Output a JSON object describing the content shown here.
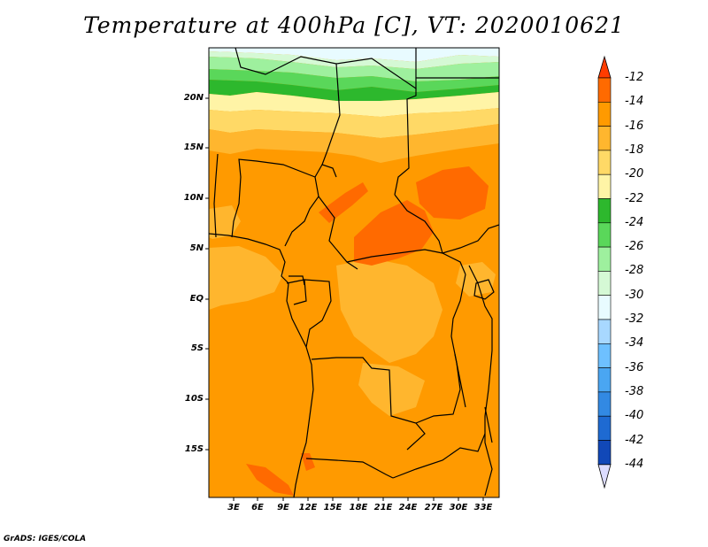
{
  "title": "Temperature at 400hPa [C], VT: 2020010621",
  "credit": "GrADS: IGES/COLA",
  "lat_labels": [
    "20N",
    "15N",
    "10N",
    "5N",
    "EQ",
    "5S",
    "10S",
    "15S"
  ],
  "lon_labels": [
    "3E",
    "6E",
    "9E",
    "12E",
    "15E",
    "18E",
    "21E",
    "24E",
    "27E",
    "30E",
    "33E"
  ],
  "colorbar": {
    "labels": [
      "-12",
      "-14",
      "-16",
      "-18",
      "-20",
      "-22",
      "-24",
      "-26",
      "-28",
      "-30",
      "-32",
      "-34",
      "-36",
      "-38",
      "-40",
      "-42",
      "-44"
    ],
    "colors": [
      "#ff3c00",
      "#ff6a00",
      "#ff9a00",
      "#ffb62e",
      "#ffd966",
      "#fff4a6",
      "#2db82d",
      "#5ad75a",
      "#9ef09e",
      "#d5f9d5",
      "#e8fbff",
      "#a8d8ff",
      "#6ec0ff",
      "#4aa6f2",
      "#3289e3",
      "#1e6ad2",
      "#1148b8",
      "#0a1f7a",
      "#dcdcff"
    ]
  },
  "map": {
    "colors": {
      "dominant": "#ff9a00",
      "warm": "#ff6a00",
      "light": "#ffb62e",
      "pale": "#ffd966",
      "cream": "#fff4a6",
      "green_dark": "#2db82d",
      "green_mid": "#5ad75a",
      "green_light": "#9ef09e",
      "mint": "#d5f9d5",
      "cyan_pale": "#e8fbff",
      "border": "#000000"
    }
  }
}
